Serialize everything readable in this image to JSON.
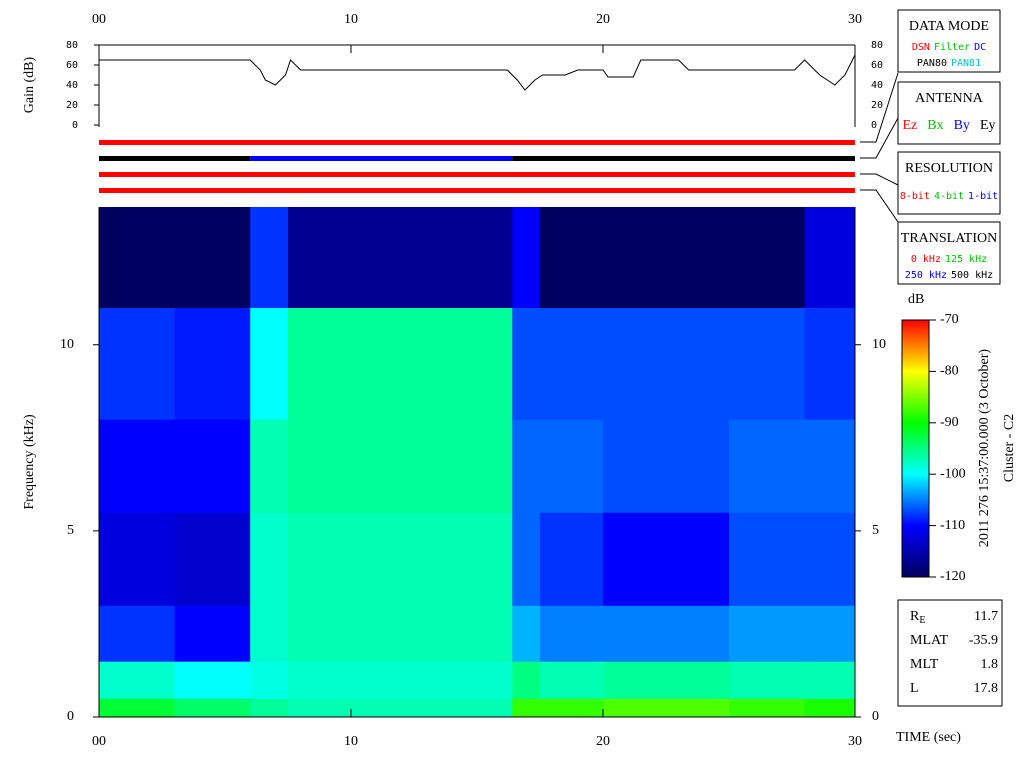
{
  "chart_data": [
    {
      "type": "line",
      "y_label": "Gain (dB)",
      "x": [
        0,
        6,
        6.4,
        6.6,
        7,
        7.4,
        7.6,
        8,
        16.2,
        16.6,
        16.9,
        17.3,
        17.6,
        18.5,
        19,
        20,
        20.2,
        21.2,
        21.5,
        23,
        23.4,
        27.6,
        28,
        28.6,
        29.2,
        29.6,
        30
      ],
      "series": [
        {
          "color": "#000000",
          "values": [
            65,
            65,
            55,
            45,
            40,
            50,
            65,
            55,
            55,
            45,
            35,
            45,
            50,
            50,
            55,
            55,
            48,
            48,
            65,
            65,
            55,
            55,
            65,
            50,
            40,
            50,
            70
          ]
        }
      ],
      "xlim": [
        0,
        30
      ],
      "xticks": [
        {
          "value": 0,
          "label": "00"
        },
        10,
        20,
        30
      ],
      "ylim": [
        0,
        80
      ],
      "yticks": [
        0,
        20,
        40,
        60,
        80
      ]
    },
    {
      "type": "heatmap",
      "x_label": "TIME (sec)",
      "y_label": "Frequency (kHz)",
      "time_bins": [
        0,
        3,
        6,
        7.5,
        16.4,
        17.5,
        20,
        25,
        28,
        30
      ],
      "freq_bins": [
        0,
        0.5,
        1.5,
        3,
        5.5,
        8,
        11,
        13.7
      ],
      "z": [
        [
          -92,
          -98,
          -108,
          -112,
          -110,
          -108,
          -120
        ],
        [
          -94,
          -100,
          -110,
          -113,
          -110,
          -109,
          -120
        ],
        [
          -96,
          -99,
          -98,
          -98,
          -97,
          -100,
          -108
        ],
        [
          -97,
          -98,
          -97,
          -97,
          -96,
          -96,
          -117
        ],
        [
          -88,
          -95,
          -103,
          -106,
          -106,
          -107,
          -110
        ],
        [
          -88,
          -97,
          -105,
          -108,
          -106,
          -107,
          -120
        ],
        [
          -87,
          -96,
          -105,
          -110,
          -107,
          -107,
          -120
        ],
        [
          -88,
          -97,
          -104,
          -107,
          -106,
          -107,
          -120
        ],
        [
          -89,
          -97,
          -104,
          -107,
          -106,
          -108,
          -112
        ]
      ],
      "xlim": [
        0,
        30
      ],
      "xticks": [
        {
          "value": 0,
          "label": "00"
        },
        10,
        20,
        30
      ],
      "ylim": [
        0,
        13.7
      ],
      "yticks": [
        0,
        5,
        10
      ],
      "colorbar": {
        "label": "dB",
        "lim": [
          -120,
          -70
        ],
        "ticks": [
          -70,
          -80,
          -90,
          -100,
          -110,
          -120
        ],
        "colors": [
          "#000060",
          "#0000ff",
          "#00ffff",
          "#00ff00",
          "#ffff00",
          "#ff0000"
        ]
      }
    }
  ],
  "status_bars": [
    [
      {
        "start": 0,
        "end": 30,
        "color": "#ff0000"
      }
    ],
    [
      {
        "start": 0,
        "end": 6,
        "color": "#000000"
      },
      {
        "start": 6,
        "end": 16.4,
        "color": "#0000ff"
      },
      {
        "start": 16.4,
        "end": 30,
        "color": "#000000"
      }
    ],
    [
      {
        "start": 0,
        "end": 30,
        "color": "#ff0000"
      }
    ],
    [
      {
        "start": 0,
        "end": 30,
        "color": "#ff0000"
      }
    ]
  ],
  "legend_boxes": [
    {
      "title": "DATA MODE",
      "rows": [
        [
          {
            "text": "DSN",
            "color": "#ff0000"
          },
          {
            "text": "Filter",
            "color": "#00c000"
          },
          {
            "text": "DC",
            "color": "#0000ff"
          }
        ],
        [
          {
            "text": "PAN80",
            "color": "#000000"
          },
          {
            "text": "PAN81",
            "color": "#00c8c8"
          }
        ]
      ]
    },
    {
      "title": "ANTENNA",
      "rows": [
        [
          {
            "text": "Ez",
            "color": "#ff0000"
          },
          {
            "text": "Bx",
            "color": "#00c000"
          },
          {
            "text": "By",
            "color": "#0000ff"
          },
          {
            "text": "Ey",
            "color": "#000000"
          }
        ]
      ]
    },
    {
      "title": "RESOLUTION",
      "rows": [
        [
          {
            "text": "8-bit",
            "color": "#ff0000"
          },
          {
            "text": "4-bit",
            "color": "#00c000"
          },
          {
            "text": "1-bit",
            "color": "#0000ff"
          }
        ]
      ]
    },
    {
      "title": "TRANSLATION",
      "rows": [
        [
          {
            "text": "0 kHz",
            "color": "#ff0000"
          },
          {
            "text": "125 kHz",
            "color": "#00c000"
          }
        ],
        [
          {
            "text": "250 kHz",
            "color": "#0000ff"
          },
          {
            "text": "500 kHz",
            "color": "#000000"
          }
        ]
      ]
    }
  ],
  "info_box": {
    "rows": [
      {
        "label": "R",
        "subscript": "E",
        "value": 11.7
      },
      {
        "label": "MLAT",
        "value": -35.9
      },
      {
        "label": "MLT",
        "value": 1.8
      },
      {
        "label": "L",
        "value": 17.8
      }
    ]
  },
  "side_text": [
    "2011 276 15:37:00.000 (3 October)",
    "Cluster - C2"
  ]
}
